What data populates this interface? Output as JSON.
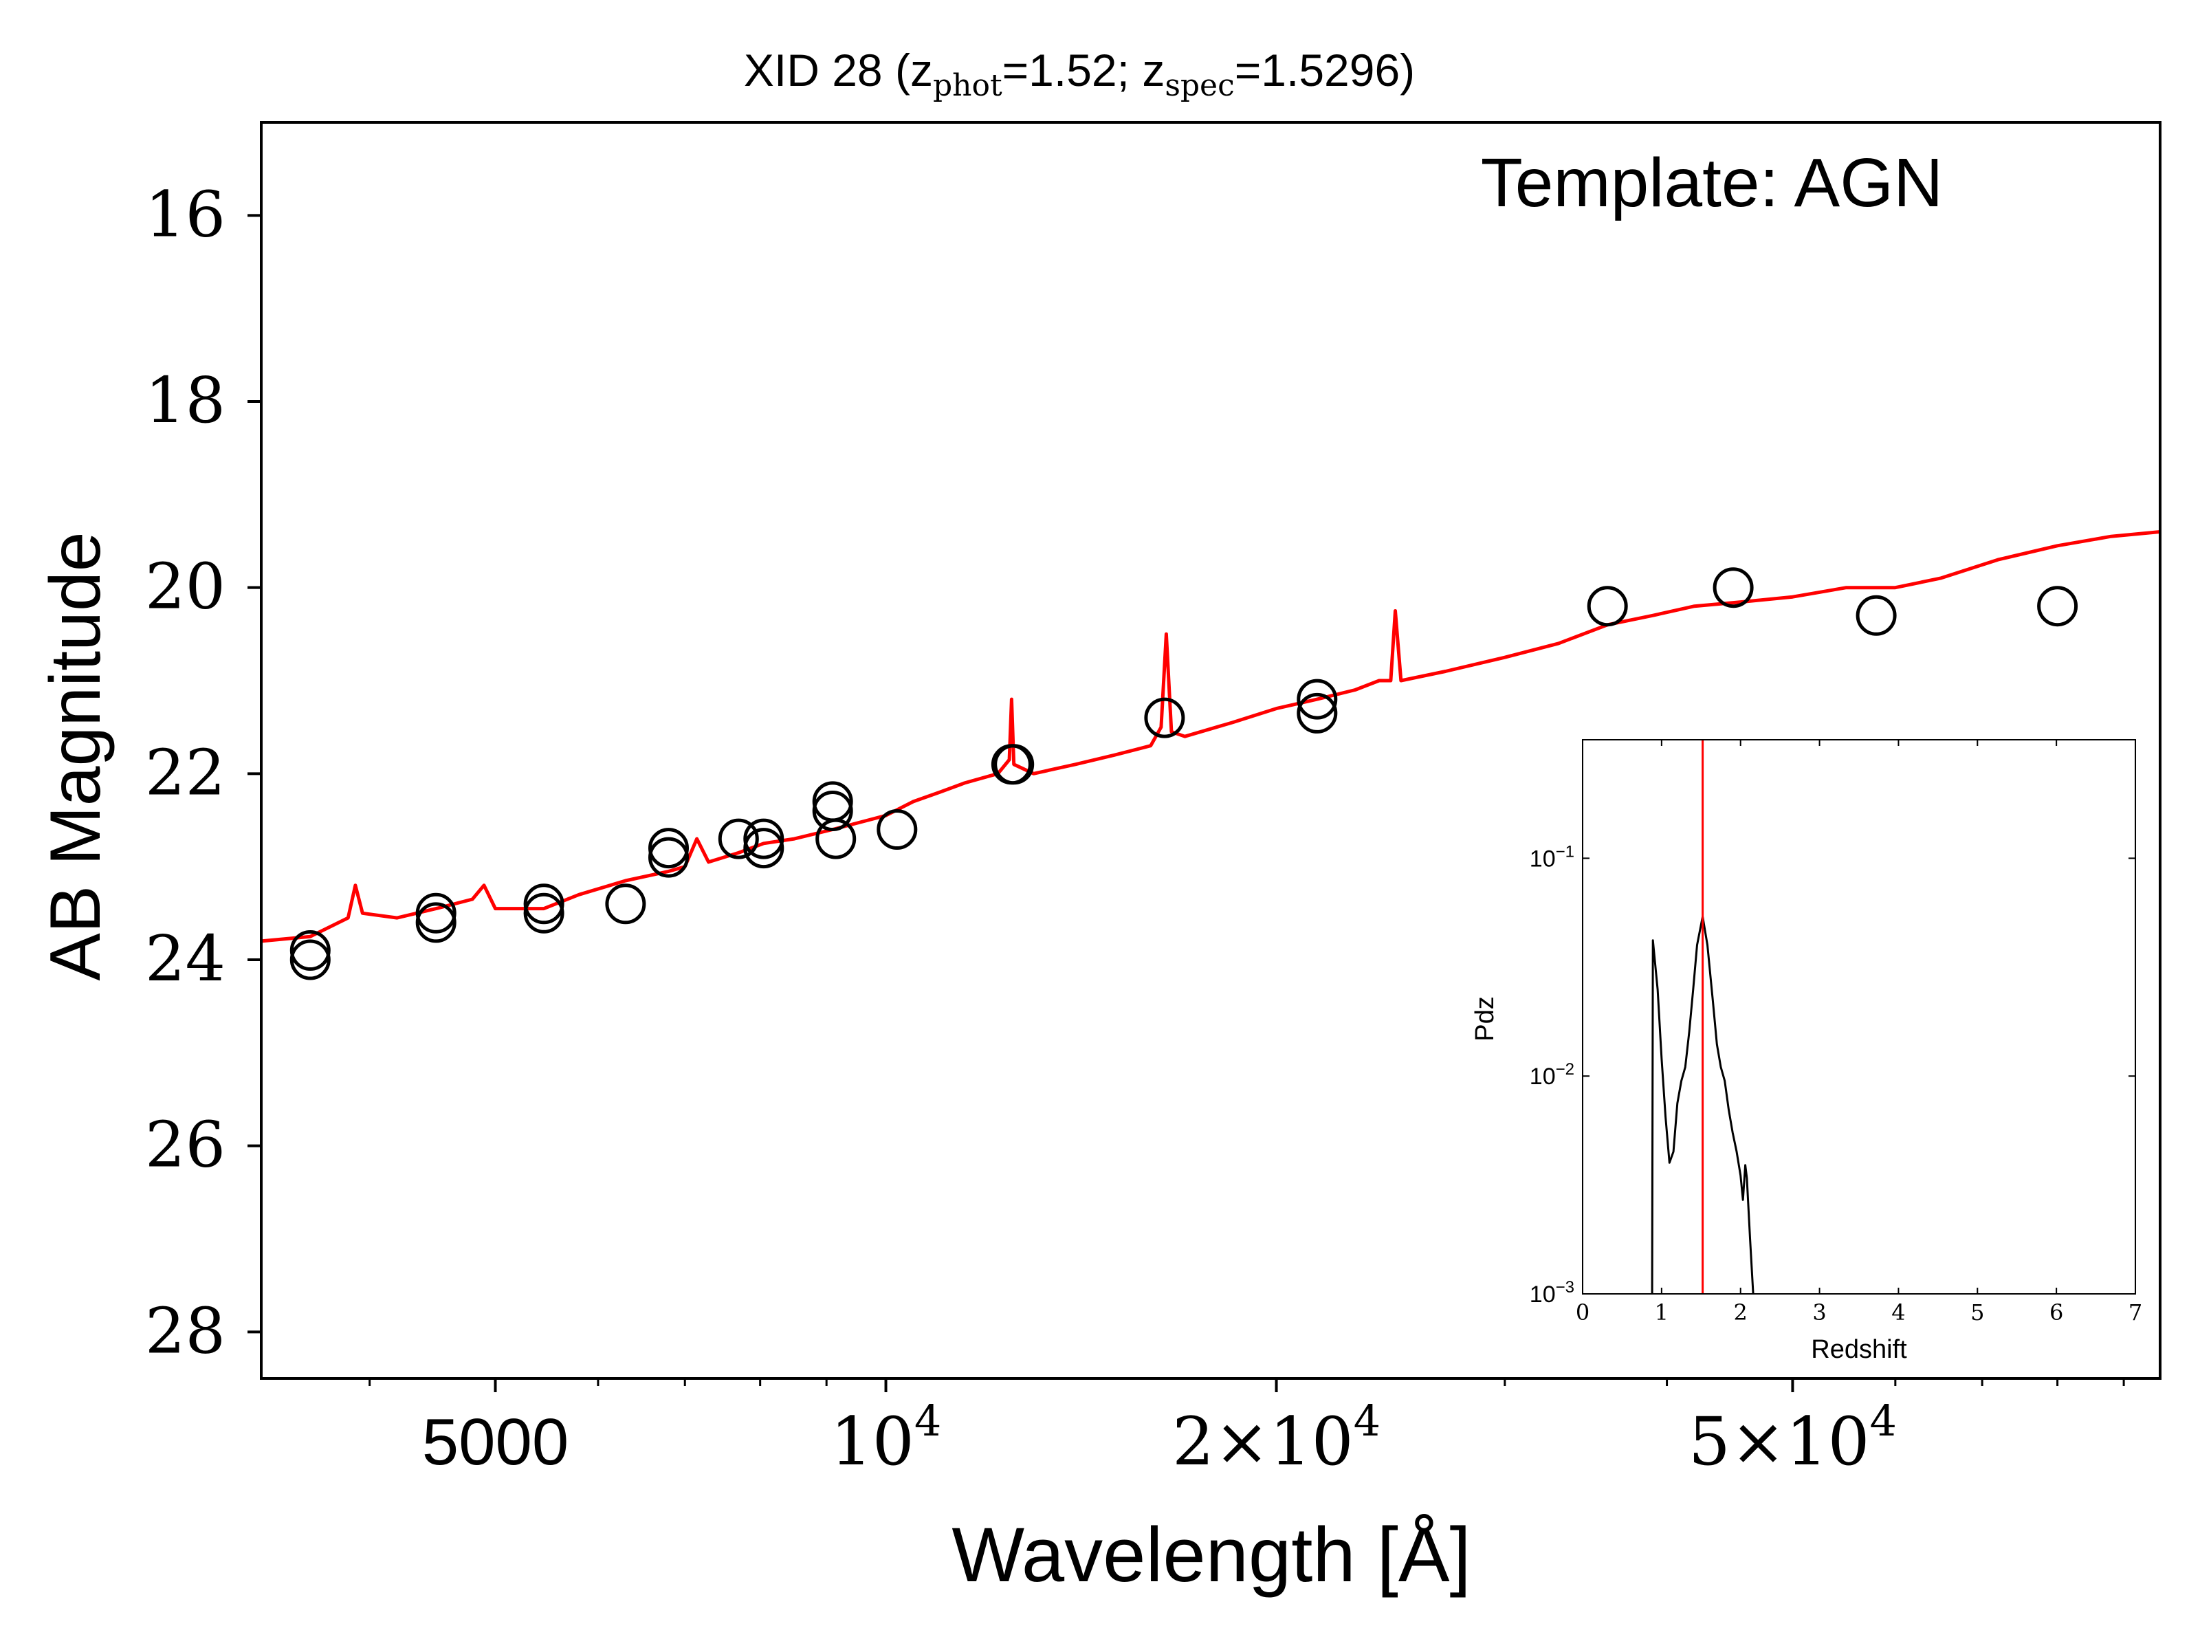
{
  "chart_data": [
    {
      "type": "scatter",
      "title": {
        "main": "XID 28 (z",
        "sub1": "phot",
        "mid": "=1.52; z",
        "sub2": "spec",
        "end": "=1.5296)"
      },
      "xlabel": "Wavelength [Å]",
      "ylabel": "AB Magnitude",
      "annotation": "Template: AGN",
      "x_scale": "log",
      "xlim": [
        3300,
        96000
      ],
      "ylim": [
        28.5,
        15
      ],
      "y_inverted": true,
      "grid": false,
      "y_ticks": [
        {
          "value": 16,
          "label": "16"
        },
        {
          "value": 18,
          "label": "18"
        },
        {
          "value": 20,
          "label": "20"
        },
        {
          "value": 22,
          "label": "22"
        },
        {
          "value": 24,
          "label": "24"
        },
        {
          "value": 26,
          "label": "26"
        },
        {
          "value": 28,
          "label": "28"
        }
      ],
      "x_major_ticks": [
        {
          "value": 5000,
          "base": "5000",
          "exp": ""
        },
        {
          "value": 10000,
          "base": "10",
          "exp": "4"
        },
        {
          "value": 20000,
          "base": "2×10",
          "exp": "4"
        },
        {
          "value": 50000,
          "base": "5×10",
          "exp": "4"
        }
      ],
      "x_minor_ticks": [
        4000,
        6000,
        7000,
        8000,
        9000,
        30000,
        40000,
        60000,
        70000,
        80000,
        90000
      ],
      "colors": {
        "model": "#ff0000",
        "points": "#000000",
        "axes": "#000000"
      },
      "series": [
        {
          "kind": "photometry",
          "points": [
            {
              "x": 3600,
              "y": 23.9
            },
            {
              "x": 3600,
              "y": 24.0
            },
            {
              "x": 4500,
              "y": 23.5
            },
            {
              "x": 4500,
              "y": 23.6
            },
            {
              "x": 5450,
              "y": 23.4
            },
            {
              "x": 5450,
              "y": 23.5
            },
            {
              "x": 6300,
              "y": 23.4
            },
            {
              "x": 6800,
              "y": 22.8
            },
            {
              "x": 6800,
              "y": 22.9
            },
            {
              "x": 7700,
              "y": 22.7
            },
            {
              "x": 8050,
              "y": 22.7
            },
            {
              "x": 8050,
              "y": 22.8
            },
            {
              "x": 9100,
              "y": 22.3
            },
            {
              "x": 9100,
              "y": 22.4
            },
            {
              "x": 9150,
              "y": 22.7
            },
            {
              "x": 10200,
              "y": 22.6
            },
            {
              "x": 12500,
              "y": 21.9
            },
            {
              "x": 12550,
              "y": 21.9
            },
            {
              "x": 16400,
              "y": 21.4
            },
            {
              "x": 21500,
              "y": 21.2
            },
            {
              "x": 21500,
              "y": 21.35
            },
            {
              "x": 36000,
              "y": 20.2
            },
            {
              "x": 45000,
              "y": 20.0
            },
            {
              "x": 58000,
              "y": 20.3
            },
            {
              "x": 80000,
              "y": 20.2
            }
          ]
        },
        {
          "kind": "model",
          "points": [
            {
              "x": 3300,
              "y": 23.8
            },
            {
              "x": 3600,
              "y": 23.75
            },
            {
              "x": 3850,
              "y": 23.55
            },
            {
              "x": 3900,
              "y": 23.2
            },
            {
              "x": 3950,
              "y": 23.5
            },
            {
              "x": 4200,
              "y": 23.55
            },
            {
              "x": 4500,
              "y": 23.45
            },
            {
              "x": 4800,
              "y": 23.35
            },
            {
              "x": 4900,
              "y": 23.2
            },
            {
              "x": 5000,
              "y": 23.45
            },
            {
              "x": 5450,
              "y": 23.45
            },
            {
              "x": 5800,
              "y": 23.3
            },
            {
              "x": 6300,
              "y": 23.15
            },
            {
              "x": 6800,
              "y": 23.05
            },
            {
              "x": 7000,
              "y": 23.0
            },
            {
              "x": 7150,
              "y": 22.7
            },
            {
              "x": 7300,
              "y": 22.95
            },
            {
              "x": 7700,
              "y": 22.85
            },
            {
              "x": 8050,
              "y": 22.75
            },
            {
              "x": 8500,
              "y": 22.7
            },
            {
              "x": 9100,
              "y": 22.6
            },
            {
              "x": 10000,
              "y": 22.45
            },
            {
              "x": 10500,
              "y": 22.3
            },
            {
              "x": 11000,
              "y": 22.2
            },
            {
              "x": 11500,
              "y": 22.1
            },
            {
              "x": 12200,
              "y": 22.0
            },
            {
              "x": 12450,
              "y": 21.85
            },
            {
              "x": 12500,
              "y": 21.2
            },
            {
              "x": 12550,
              "y": 21.9
            },
            {
              "x": 13000,
              "y": 22.0
            },
            {
              "x": 14000,
              "y": 21.9
            },
            {
              "x": 15000,
              "y": 21.8
            },
            {
              "x": 16000,
              "y": 21.7
            },
            {
              "x": 16300,
              "y": 21.5
            },
            {
              "x": 16450,
              "y": 20.5
            },
            {
              "x": 16600,
              "y": 21.55
            },
            {
              "x": 17000,
              "y": 21.6
            },
            {
              "x": 18500,
              "y": 21.45
            },
            {
              "x": 20000,
              "y": 21.3
            },
            {
              "x": 21500,
              "y": 21.2
            },
            {
              "x": 23000,
              "y": 21.1
            },
            {
              "x": 24000,
              "y": 21.0
            },
            {
              "x": 24500,
              "y": 21.0
            },
            {
              "x": 24700,
              "y": 20.25
            },
            {
              "x": 24950,
              "y": 21.0
            },
            {
              "x": 27000,
              "y": 20.9
            },
            {
              "x": 30000,
              "y": 20.75
            },
            {
              "x": 33000,
              "y": 20.6
            },
            {
              "x": 36000,
              "y": 20.4
            },
            {
              "x": 39000,
              "y": 20.3
            },
            {
              "x": 42000,
              "y": 20.2
            },
            {
              "x": 46000,
              "y": 20.15
            },
            {
              "x": 50000,
              "y": 20.1
            },
            {
              "x": 55000,
              "y": 20.0
            },
            {
              "x": 60000,
              "y": 20.0
            },
            {
              "x": 65000,
              "y": 19.9
            },
            {
              "x": 72000,
              "y": 19.7
            },
            {
              "x": 80000,
              "y": 19.55
            },
            {
              "x": 88000,
              "y": 19.45
            },
            {
              "x": 96000,
              "y": 19.4
            }
          ]
        }
      ]
    },
    {
      "type": "line",
      "xlabel": "Redshift",
      "ylabel": "Pdz",
      "y_scale": "log",
      "xlim": [
        0,
        7
      ],
      "ylim": [
        0.001,
        0.35
      ],
      "grid": false,
      "x_ticks": [
        0,
        1,
        2,
        3,
        4,
        5,
        6,
        7
      ],
      "x_tick_labels": [
        "0",
        "1",
        "2",
        "3",
        "4",
        "5",
        "6",
        "7"
      ],
      "y_ticks": [
        {
          "value": 0.1,
          "base": "10",
          "exp": "−1"
        },
        {
          "value": 0.01,
          "base": "10",
          "exp": "−2"
        },
        {
          "value": 0.001,
          "base": "10",
          "exp": "−3"
        }
      ],
      "marker_line": {
        "x": 1.52,
        "color": "#ff0000"
      },
      "series": [
        {
          "color": "#000000",
          "points": [
            {
              "x": 0.88,
              "y": 0.001
            },
            {
              "x": 0.89,
              "y": 0.042
            },
            {
              "x": 0.95,
              "y": 0.025
            },
            {
              "x": 1.0,
              "y": 0.012
            },
            {
              "x": 1.05,
              "y": 0.0065
            },
            {
              "x": 1.1,
              "y": 0.004
            },
            {
              "x": 1.15,
              "y": 0.0045
            },
            {
              "x": 1.2,
              "y": 0.0075
            },
            {
              "x": 1.25,
              "y": 0.0095
            },
            {
              "x": 1.3,
              "y": 0.011
            },
            {
              "x": 1.35,
              "y": 0.016
            },
            {
              "x": 1.4,
              "y": 0.025
            },
            {
              "x": 1.45,
              "y": 0.04
            },
            {
              "x": 1.52,
              "y": 0.054
            },
            {
              "x": 1.58,
              "y": 0.04
            },
            {
              "x": 1.65,
              "y": 0.022
            },
            {
              "x": 1.7,
              "y": 0.014
            },
            {
              "x": 1.75,
              "y": 0.011
            },
            {
              "x": 1.8,
              "y": 0.0095
            },
            {
              "x": 1.85,
              "y": 0.007
            },
            {
              "x": 1.9,
              "y": 0.0055
            },
            {
              "x": 1.95,
              "y": 0.0045
            },
            {
              "x": 2.0,
              "y": 0.0035
            },
            {
              "x": 2.03,
              "y": 0.0027
            },
            {
              "x": 2.06,
              "y": 0.0039
            },
            {
              "x": 2.08,
              "y": 0.0034
            },
            {
              "x": 2.12,
              "y": 0.0018
            },
            {
              "x": 2.16,
              "y": 0.001
            }
          ]
        }
      ]
    }
  ]
}
